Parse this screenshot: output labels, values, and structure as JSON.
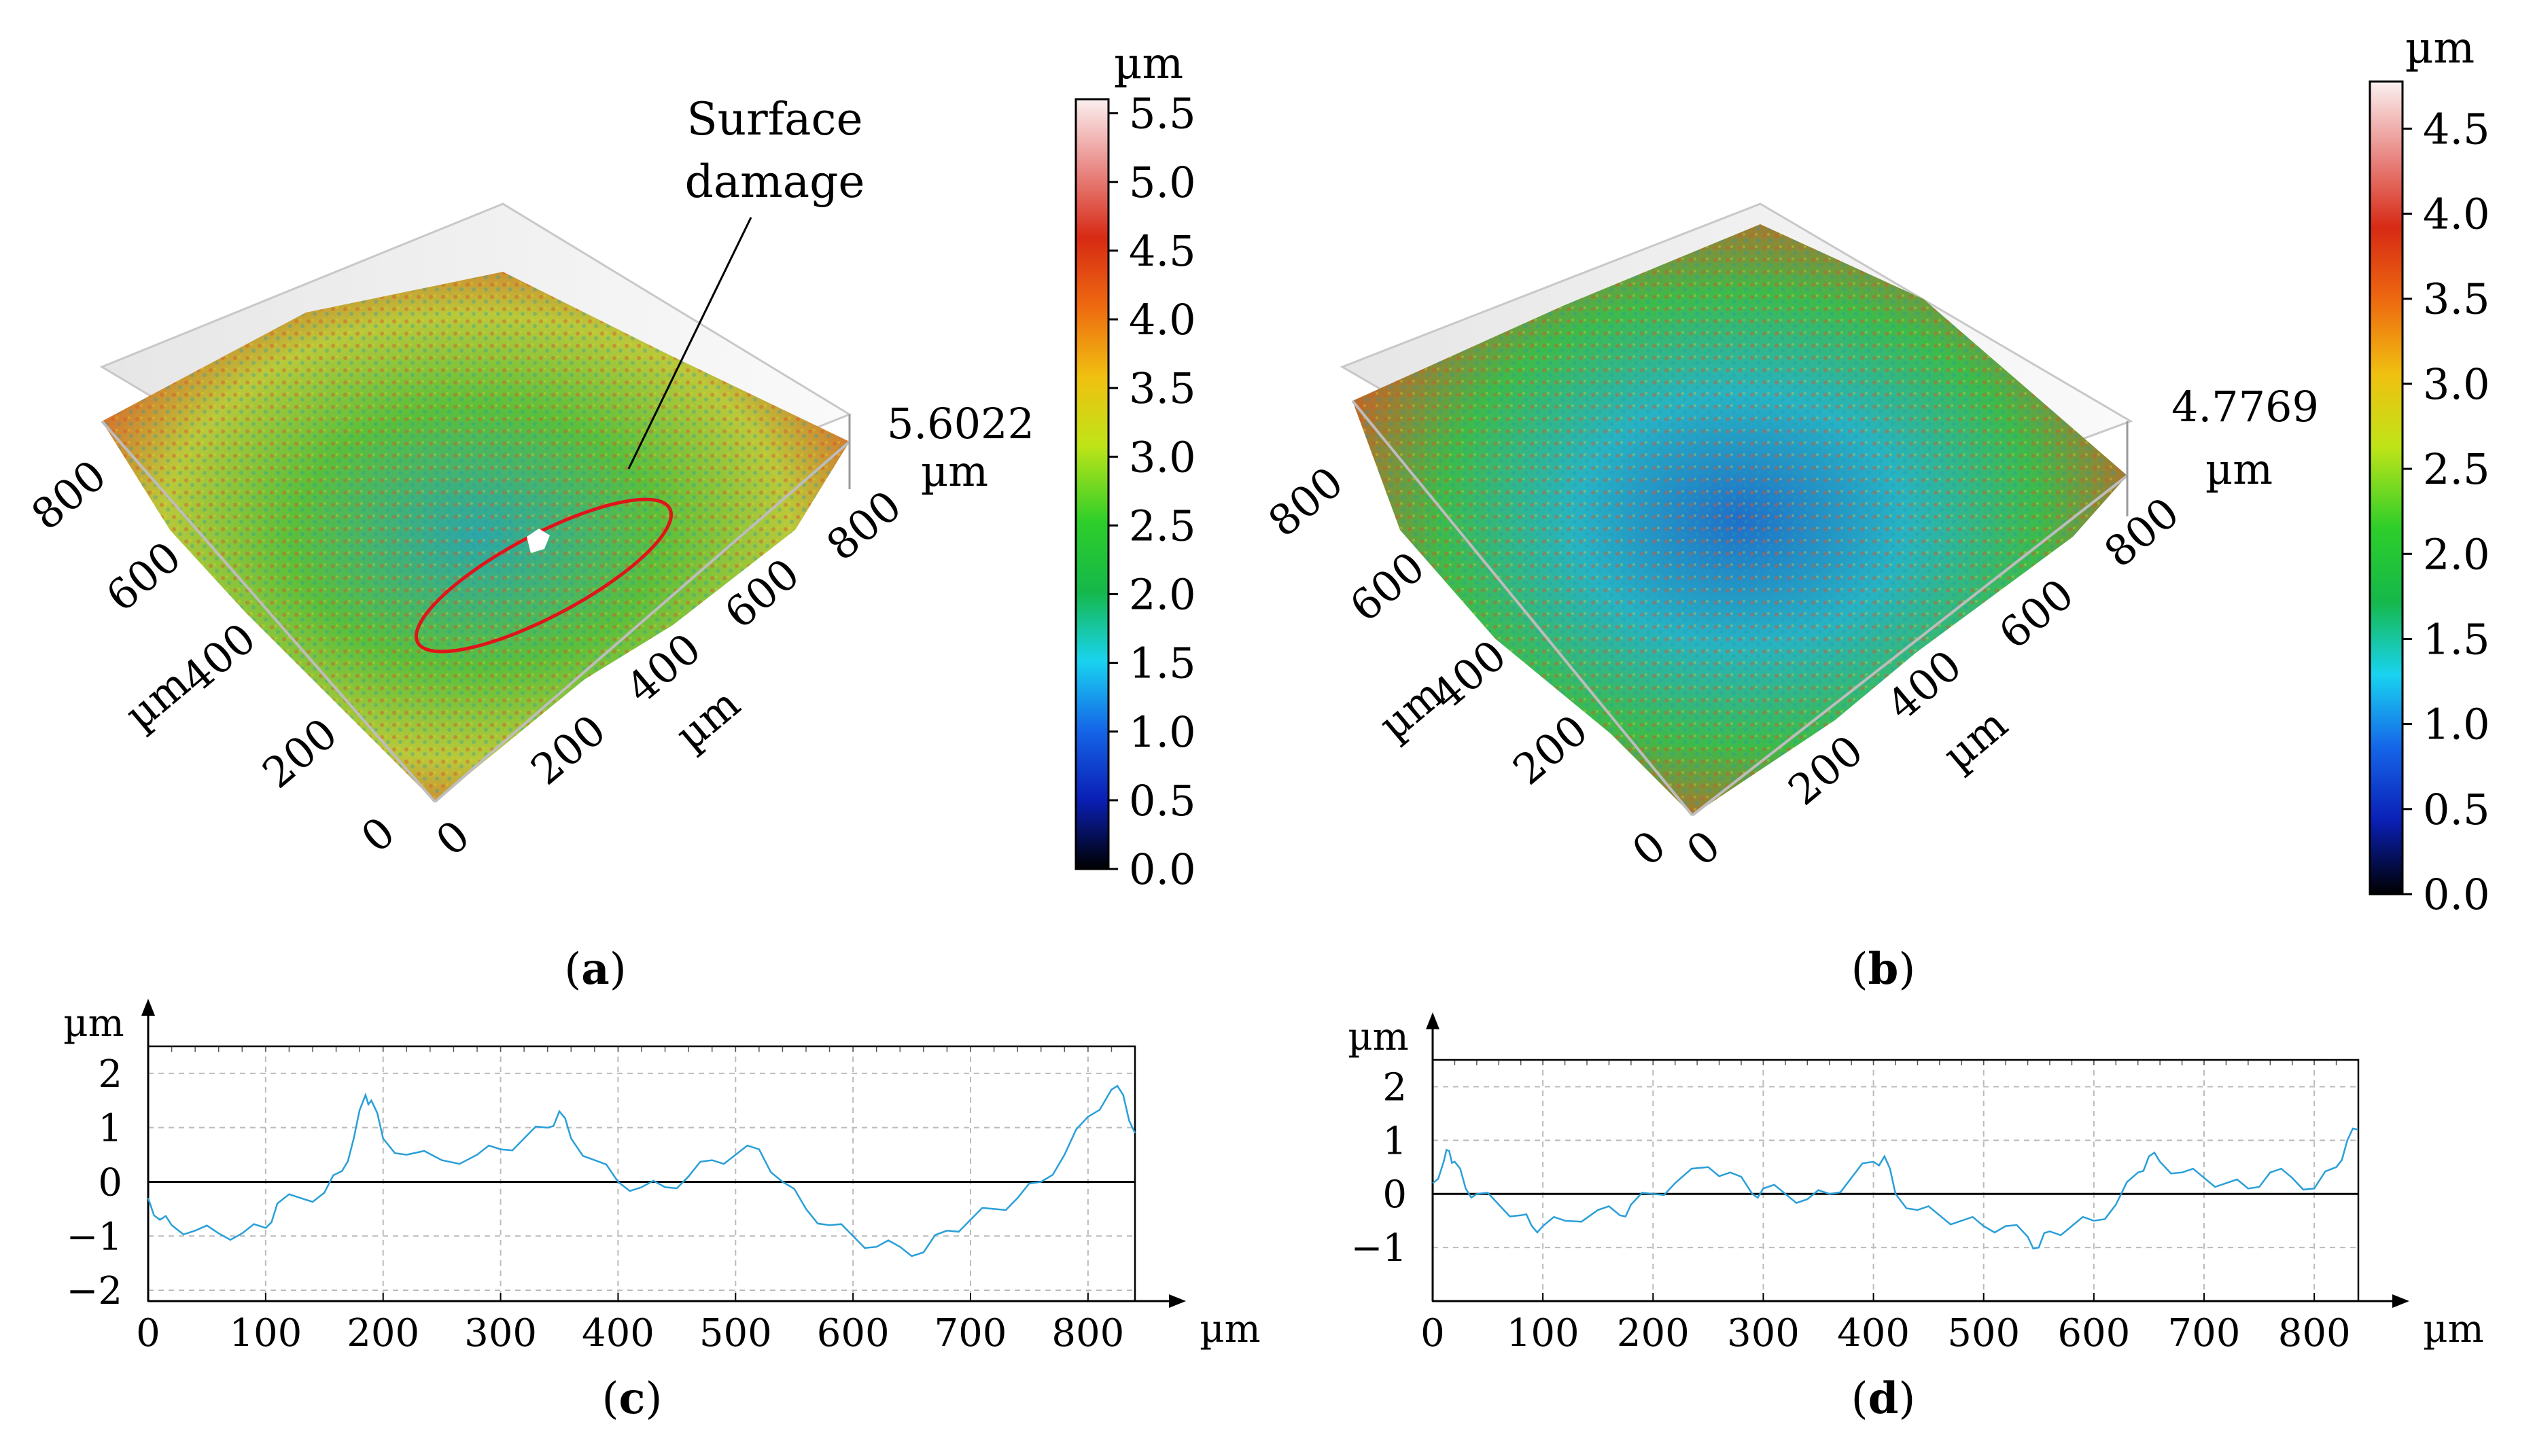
{
  "panels": {
    "a": {
      "label_open": "(",
      "label_letter": "a",
      "label_close": ")",
      "chart_data": {
        "type": "surface3d",
        "title": "",
        "x_axis": {
          "label": "µm",
          "ticks": [
            "0",
            "200",
            "400",
            "600",
            "800"
          ]
        },
        "y_axis": {
          "label": "µm",
          "ticks": [
            "0",
            "200",
            "400",
            "600",
            "800"
          ]
        },
        "z_max_label": [
          "5.6022",
          "µm"
        ],
        "annotation": [
          "Surface",
          "damage"
        ],
        "colorbar": {
          "unit": "µm",
          "ticks": [
            "0.0",
            "0.5",
            "1.0",
            "1.5",
            "2.0",
            "2.5",
            "3.0",
            "3.5",
            "4.0",
            "4.5",
            "5.0",
            "5.5"
          ],
          "range": [
            0,
            5.6022
          ]
        }
      }
    },
    "b": {
      "label_open": "(",
      "label_letter": "b",
      "label_close": ")",
      "chart_data": {
        "type": "surface3d",
        "title": "",
        "x_axis": {
          "label": "µm",
          "ticks": [
            "0",
            "200",
            "400",
            "600",
            "800"
          ]
        },
        "y_axis": {
          "label": "µm",
          "ticks": [
            "0",
            "200",
            "400",
            "600",
            "800"
          ]
        },
        "z_max_label": [
          "4.7769",
          "µm"
        ],
        "colorbar": {
          "unit": "µm",
          "ticks": [
            "0.0",
            "0.5",
            "1.0",
            "1.5",
            "2.0",
            "2.5",
            "3.0",
            "3.5",
            "4.0",
            "4.5"
          ],
          "range": [
            0,
            4.7769
          ]
        }
      }
    },
    "c": {
      "label_open": "(",
      "label_letter": "c",
      "label_close": ")",
      "chart_data": {
        "type": "line",
        "xlabel": "µm",
        "ylabel": "µm",
        "xlim": [
          0,
          840
        ],
        "ylim": [
          -2.2,
          2.5
        ],
        "x_ticks": [
          "0",
          "100",
          "200",
          "300",
          "400",
          "500",
          "600",
          "700",
          "800"
        ],
        "y_ticks": [
          "2",
          "1",
          "0",
          "−1",
          "−2"
        ],
        "series": [
          {
            "name": "profile",
            "x": [
              0,
              10,
              20,
              40,
              60,
              80,
              100,
              110,
              130,
              150,
              165,
              175,
              185,
              190,
              200,
              220,
              250,
              280,
              300,
              320,
              340,
              350,
              360,
              380,
              400,
              420,
              440,
              460,
              480,
              500,
              520,
              540,
              560,
              580,
              600,
              620,
              640,
              660,
              680,
              700,
              720,
              740,
              760,
              780,
              800,
              820,
              830,
              840
            ],
            "y": [
              -0.3,
              -0.7,
              -0.8,
              -0.9,
              -0.95,
              -0.95,
              -0.85,
              -0.4,
              -0.3,
              -0.2,
              0.2,
              0.8,
              1.6,
              1.5,
              0.8,
              0.5,
              0.4,
              0.5,
              0.6,
              0.8,
              1.0,
              1.3,
              0.8,
              0.4,
              0.0,
              -0.1,
              -0.1,
              0.1,
              0.4,
              0.5,
              0.6,
              0.0,
              -0.5,
              -0.8,
              -1.0,
              -1.2,
              -1.2,
              -1.3,
              -0.9,
              -0.7,
              -0.5,
              -0.3,
              0.0,
              0.5,
              1.2,
              1.7,
              1.6,
              0.9
            ]
          }
        ]
      }
    },
    "d": {
      "label_open": "(",
      "label_letter": "d",
      "label_close": ")",
      "chart_data": {
        "type": "line",
        "xlabel": "µm",
        "ylabel": "µm",
        "xlim": [
          0,
          840
        ],
        "ylim": [
          -2.0,
          2.5
        ],
        "x_ticks": [
          "0",
          "100",
          "200",
          "300",
          "400",
          "500",
          "600",
          "700",
          "800"
        ],
        "y_ticks": [
          "2",
          "1",
          "0",
          "−1"
        ],
        "series": [
          {
            "name": "profile",
            "x": [
              0,
              10,
              15,
              20,
              30,
              40,
              60,
              80,
              90,
              100,
              120,
              150,
              170,
              180,
              200,
              220,
              250,
              270,
              290,
              300,
              320,
              340,
              360,
              380,
              400,
              410,
              420,
              440,
              460,
              480,
              500,
              520,
              540,
              550,
              560,
              580,
              600,
              620,
              640,
              650,
              660,
              680,
              700,
              720,
              740,
              760,
              780,
              800,
              820,
              830,
              840
            ],
            "y": [
              0.2,
              0.6,
              0.8,
              0.6,
              0.1,
              0.0,
              -0.2,
              -0.4,
              -0.6,
              -0.6,
              -0.5,
              -0.3,
              -0.4,
              -0.2,
              0.0,
              0.2,
              0.5,
              0.4,
              0.0,
              0.1,
              0.0,
              -0.1,
              0.0,
              0.3,
              0.6,
              0.7,
              0.0,
              -0.3,
              -0.4,
              -0.5,
              -0.6,
              -0.6,
              -0.8,
              -1.0,
              -0.7,
              -0.6,
              -0.5,
              -0.2,
              0.4,
              0.7,
              0.6,
              0.4,
              0.3,
              0.2,
              0.1,
              0.4,
              0.3,
              0.1,
              0.5,
              1.0,
              1.2
            ]
          }
        ]
      }
    }
  }
}
